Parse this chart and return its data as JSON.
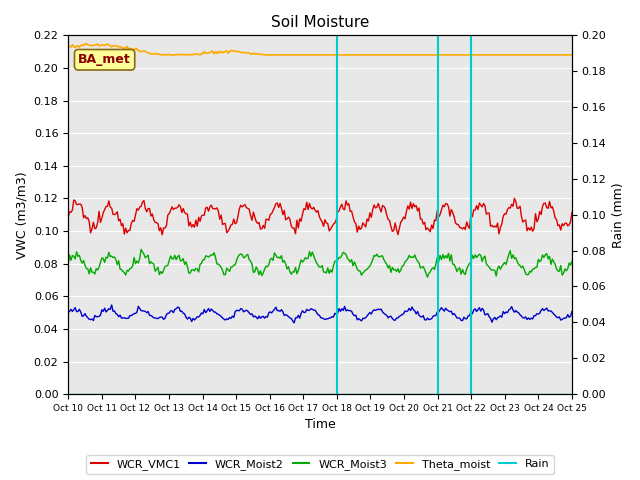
{
  "title": "Soil Moisture",
  "xlabel": "Time",
  "ylabel_left": "VWC (m3/m3)",
  "ylabel_right": "Rain (mm)",
  "ylim_left": [
    0.0,
    0.22
  ],
  "ylim_right": [
    0.0,
    0.2
  ],
  "n_days": 15,
  "vline_days": [
    8,
    11,
    12
  ],
  "vline_color": "#00cccc",
  "annotation_text": "BA_met",
  "annotation_color": "#8b0000",
  "annotation_bg": "#ffff99",
  "annotation_edge": "#8b6914",
  "bg_color": "#e8e8e8",
  "grid_color": "#ffffff",
  "wcr_vmc1_base": 0.109,
  "wcr_vmc1_amp": 0.007,
  "wcr_moist2_base": 0.049,
  "wcr_moist2_amp": 0.003,
  "wcr_moist3_base": 0.08,
  "wcr_moist3_amp": 0.005,
  "theta_base": 0.213,
  "theta_amp": 0.002,
  "legend_items": [
    {
      "label": "WCR_VMC1",
      "color": "#dd0000"
    },
    {
      "label": "WCR_Moist2",
      "color": "#0000cc"
    },
    {
      "label": "WCR_Moist3",
      "color": "#00aa00"
    },
    {
      "label": "Theta_moist",
      "color": "#ffaa00"
    },
    {
      "label": "Rain",
      "color": "#00cccc"
    }
  ]
}
